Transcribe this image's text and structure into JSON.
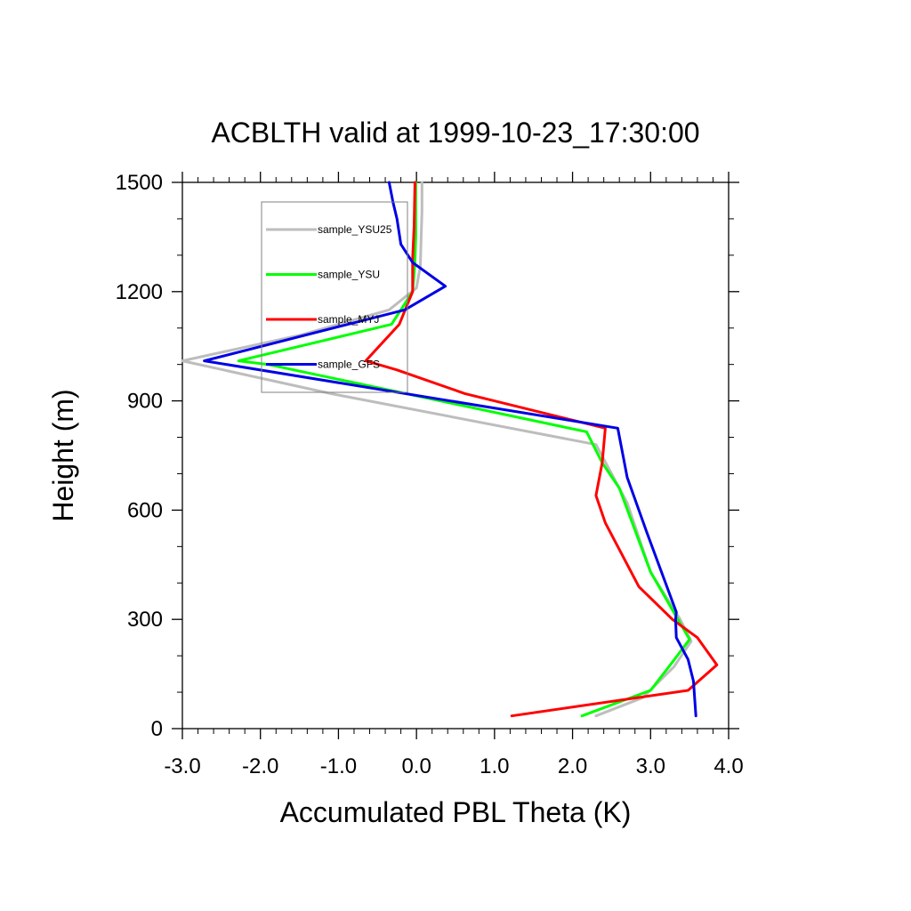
{
  "chart_data": {
    "type": "line",
    "title": "ACBLTH valid at 1999-10-23_17:30:00",
    "xlabel": "Accumulated PBL Theta (K)",
    "ylabel": "Height (m)",
    "xlim": [
      -3.0,
      4.0
    ],
    "ylim": [
      0,
      1500
    ],
    "xticks": [
      -3.0,
      -2.0,
      -1.0,
      0.0,
      1.0,
      2.0,
      3.0,
      4.0
    ],
    "xtick_labels": [
      "-3.0",
      "-2.0",
      "-1.0",
      "0.0",
      "1.0",
      "2.0",
      "3.0",
      "4.0"
    ],
    "yticks": [
      0,
      300,
      600,
      900,
      1200,
      1500
    ],
    "ytick_labels": [
      "0",
      "300",
      "600",
      "900",
      "1200",
      "1500"
    ],
    "grid": false,
    "legend_position": "top-left",
    "series": [
      {
        "name": "sample_YSU25",
        "color": "#bdbdbd",
        "x": [
          2.3,
          2.9,
          3.3,
          3.52,
          3.38,
          3.0,
          2.7,
          2.3,
          -1.1,
          -3.0,
          -1.5,
          -0.35,
          0.0,
          0.05,
          0.06,
          0.07,
          0.07
        ],
        "y": [
          35,
          85,
          170,
          240,
          300,
          430,
          620,
          780,
          920,
          1010,
          1080,
          1150,
          1210,
          1270,
          1350,
          1420,
          1500
        ]
      },
      {
        "name": "sample_YSU",
        "color": "#00ff00",
        "x": [
          2.12,
          3.0,
          3.27,
          3.5,
          3.35,
          3.0,
          2.6,
          2.38,
          2.18,
          -1.9,
          -2.28,
          -0.32,
          -0.05,
          -0.02,
          -0.01,
          -0.01,
          -0.01
        ],
        "y": [
          35,
          105,
          180,
          245,
          300,
          430,
          660,
          730,
          815,
          1000,
          1010,
          1110,
          1200,
          1280,
          1350,
          1420,
          1500
        ]
      },
      {
        "name": "sample_MYJ",
        "color": "#ff0000",
        "x": [
          1.22,
          3.48,
          3.85,
          3.6,
          3.28,
          2.85,
          2.42,
          2.3,
          2.38,
          2.42,
          0.62,
          -0.25,
          -0.65,
          -0.22,
          -0.05,
          -0.05,
          -0.03,
          -0.02
        ],
        "y": [
          35,
          105,
          175,
          250,
          300,
          390,
          565,
          640,
          730,
          825,
          920,
          985,
          1010,
          1110,
          1200,
          1290,
          1380,
          1500
        ]
      },
      {
        "name": "sample_GFS",
        "color": "#0000e6",
        "x": [
          3.58,
          3.55,
          3.48,
          3.33,
          3.32,
          3.33,
          2.95,
          2.7,
          2.58,
          -2.72,
          -0.15,
          0.37,
          -0.05,
          -0.2,
          -0.25,
          -0.3,
          -0.35
        ],
        "y": [
          35,
          130,
          190,
          250,
          300,
          320,
          540,
          690,
          825,
          1010,
          1150,
          1215,
          1280,
          1330,
          1400,
          1445,
          1500
        ]
      }
    ]
  }
}
